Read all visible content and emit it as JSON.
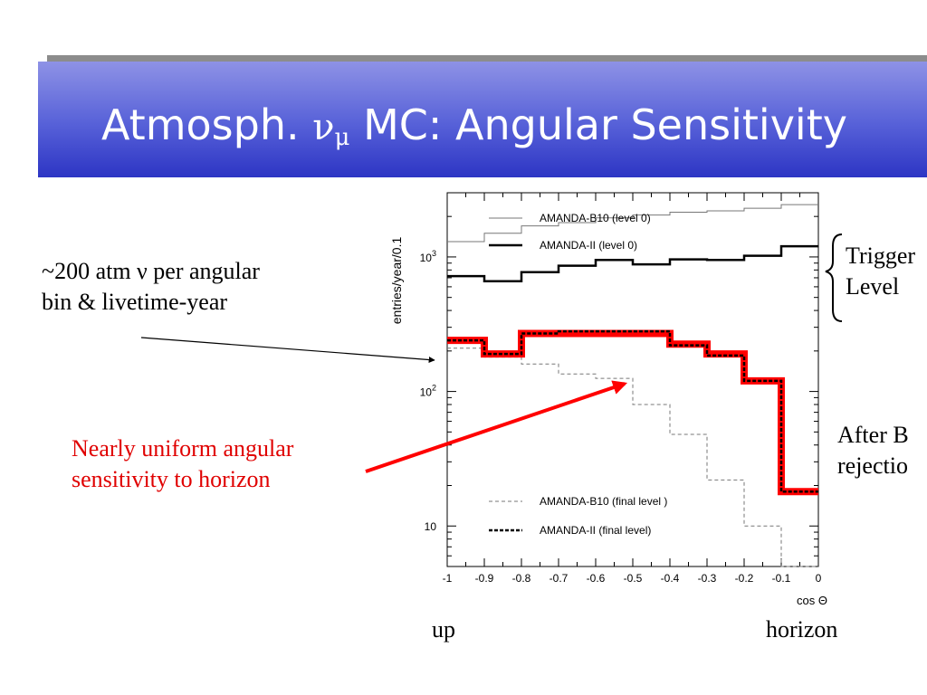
{
  "slide": {
    "title_prefix": "Atmosph. ",
    "title_nu": "ν",
    "title_mu": "μ",
    "title_suffix": " MC: Angular Sensitivity",
    "note_livetime_1": "~200 atm ν per angular",
    "note_livetime_2": "bin & livetime-year",
    "note_uniform_1": "Nearly uniform angular",
    "note_uniform_2": "sensitivity to horizon",
    "note_trigger_1": "Trigger",
    "note_trigger_2": "Level",
    "note_after_1": "After B",
    "note_after_2": "rejectio",
    "label_up": "up",
    "label_horizon": "horizon"
  },
  "colors": {
    "title_bar": "#4a52d2",
    "title_text": "#ffffff",
    "highlight": "#ff0000",
    "annotation_red": "#e00000"
  },
  "chart_data": {
    "type": "line",
    "step": true,
    "xlabel": "cos Θ",
    "ylabel": "entries/year/0.1",
    "xlim": [
      -1,
      0
    ],
    "ylim": [
      5,
      3000
    ],
    "yscale": "log",
    "x_edges": [
      -1,
      -0.9,
      -0.8,
      -0.7,
      -0.6,
      -0.5,
      -0.4,
      -0.3,
      -0.2,
      -0.1,
      0
    ],
    "x_ticks": [
      "-1",
      "-0.9",
      "-0.8",
      "-0.7",
      "-0.6",
      "-0.5",
      "-0.4",
      "-0.3",
      "-0.2",
      "-0.1",
      "0"
    ],
    "y_ticks": [
      {
        "value": 1000,
        "base": "10",
        "exp": "3"
      },
      {
        "value": 100,
        "base": "10",
        "exp": "2"
      },
      {
        "value": 10,
        "base": "10",
        "exp": ""
      }
    ],
    "legend_top": {
      "position": "top-left"
    },
    "legend_bottom": {
      "position": "bottom-left"
    },
    "series": [
      {
        "name": "AMANDA-B10 (level 0)",
        "style": "thin-gray",
        "color": "#777777",
        "values": [
          1300,
          1500,
          1700,
          1800,
          1950,
          2050,
          2150,
          2200,
          2300,
          2450
        ]
      },
      {
        "name": "AMANDA-II (level 0)",
        "style": "thick-black",
        "color": "#000000",
        "values": [
          720,
          660,
          770,
          860,
          950,
          880,
          960,
          950,
          1020,
          1200
        ]
      },
      {
        "name": "AMANDA-B10 (final level )",
        "style": "dashed-gray",
        "color": "#777777",
        "values": [
          210,
          180,
          160,
          135,
          125,
          80,
          48,
          22,
          10,
          5
        ]
      },
      {
        "name": "AMANDA-II (final level)",
        "style": "dashed-black",
        "color": "#000000",
        "values": [
          240,
          190,
          270,
          280,
          280,
          280,
          220,
          185,
          120,
          18
        ]
      },
      {
        "name": "",
        "style": "red-highlight",
        "color": "#ff0000",
        "values": [
          240,
          190,
          270,
          270,
          270,
          270,
          225,
          190,
          120,
          18
        ]
      }
    ]
  }
}
